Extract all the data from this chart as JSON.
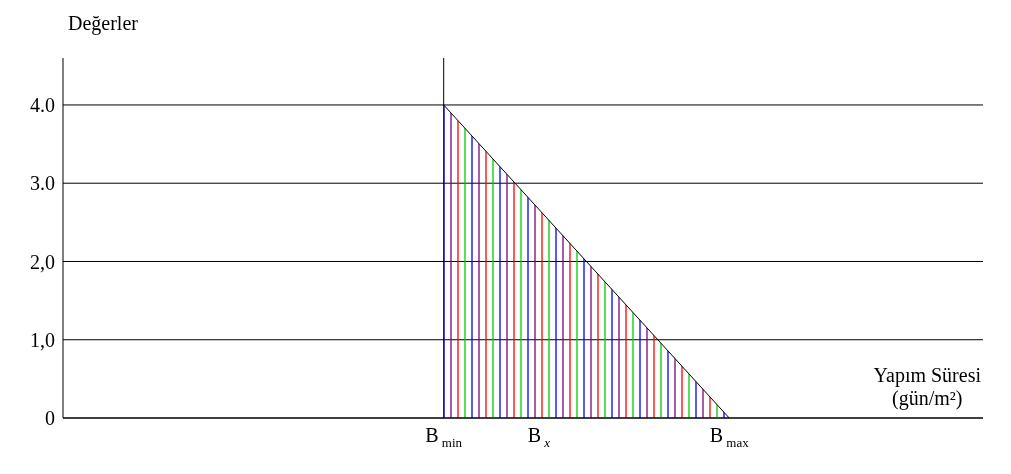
{
  "chart_data": {
    "type": "area",
    "ylabel": "Değerler",
    "xlabel": "Yapım Süresi\n(gün/m²)",
    "categories": [
      null,
      null,
      null,
      null,
      null,
      null,
      null,
      null,
      null,
      null,
      null,
      null,
      "B$_{min}$",
      null,
      null,
      "B$_{x}$",
      null,
      null,
      null,
      null,
      null,
      "B$_{max}$",
      null,
      null,
      null,
      null,
      null,
      null,
      null,
      null
    ],
    "ylim": [
      0,
      4.6
    ],
    "yticks": [
      {
        "value": 0,
        "label": "0"
      },
      {
        "value": 1,
        "label": "1,0"
      },
      {
        "value": 2,
        "label": "2,0"
      },
      {
        "value": 3,
        "label": "3.0"
      },
      {
        "value": 4,
        "label": "4.0"
      }
    ],
    "grid": "y",
    "series": [
      {
        "color": "#000000",
        "values": [
          null,
          null,
          null,
          null,
          null,
          null,
          null,
          null,
          null,
          null,
          null,
          null,
          4,
          null,
          null,
          null,
          null,
          null,
          null,
          null,
          null,
          0,
          null,
          null,
          null,
          null,
          null,
          null,
          null,
          null
        ]
      }
    ],
    "ref_lines": [
      {
        "axis": "x",
        "value": "B$_{min}$",
        "color": "#000000"
      }
    ]
  }
}
